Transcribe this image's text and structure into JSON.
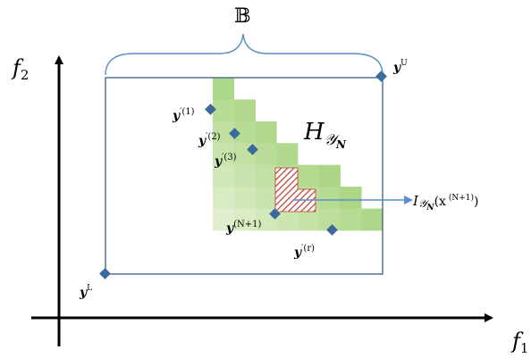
{
  "title": "",
  "axes": {
    "x_label_base": "f",
    "x_label_sub": "1",
    "y_label_base": "f",
    "y_label_sub": "2"
  },
  "brace_label": "𝔹",
  "points": {
    "upper": {
      "base": "y",
      "sup": "U"
    },
    "lower": {
      "base": "y",
      "sup": "L"
    },
    "p1": {
      "base": "y",
      "sup": "′(1)"
    },
    "p2": {
      "base": "y",
      "sup": "′(2)"
    },
    "p3": {
      "base": "y",
      "sup": "′(3)"
    },
    "pn1": {
      "base": "y",
      "sup": "(N+1)"
    },
    "pr": {
      "base": "y",
      "sup": "′(r)"
    }
  },
  "region_label": {
    "base": "H",
    "sub": "𝒴",
    "subsub": "N"
  },
  "improvement_label": {
    "base": "I",
    "sub": "𝒴",
    "subsub": "N",
    "arg": "(x",
    "arg_sup": " (N+1)",
    "arg_close": ")"
  },
  "colors": {
    "axis": "#000000",
    "box": "#4a6a8a",
    "brace": "#5b8fc9",
    "marker": "#3d6a9c",
    "green_light": "#e2efcf",
    "green_dark": "#8cc85a",
    "hatch": "#c0392b",
    "arrow": "#5b8fc9"
  }
}
